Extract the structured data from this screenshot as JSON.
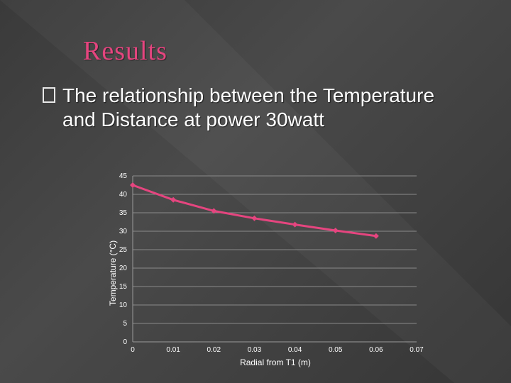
{
  "slide": {
    "title": "Results",
    "bullet_line1": "The relationship between the Temperature",
    "bullet_line2": "and Distance at power 30watt"
  },
  "colors": {
    "title": "#e5457f",
    "series": "#e5457f",
    "gridline": "#8a8a8a"
  },
  "chart_data": {
    "type": "line",
    "xlabel": "Radial from T1 (m)",
    "ylabel": "Temperature (°C)",
    "x": [
      0,
      0.01,
      0.02,
      0.03,
      0.04,
      0.05,
      0.06
    ],
    "series": [
      {
        "values": [
          42.5,
          38.5,
          35.5,
          33.5,
          31.8,
          30.2,
          28.7
        ]
      }
    ],
    "xlim": [
      0,
      0.07
    ],
    "ylim": [
      0,
      45
    ],
    "xticks": [
      "0",
      "0.01",
      "0.02",
      "0.03",
      "0.04",
      "0.05",
      "0.06",
      "0.07"
    ],
    "yticks": [
      "0",
      "5",
      "10",
      "15",
      "20",
      "25",
      "30",
      "35",
      "40",
      "45"
    ],
    "grid": true,
    "legend": "none"
  }
}
